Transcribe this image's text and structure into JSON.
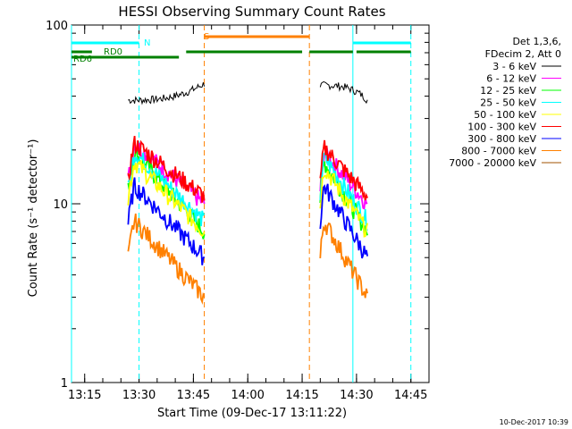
{
  "chart_data": {
    "type": "line",
    "title": "HESSI Observing Summary Count Rates",
    "xlabel": "Start Time (09-Dec-17 13:11:22)",
    "ylabel": "Count Rate (s⁻¹ detector⁻¹)",
    "yscale": "log",
    "ylim": [
      1,
      100
    ],
    "xlim": [
      "13:11:22",
      "14:50:00"
    ],
    "x_ticks": [
      "13:15",
      "13:30",
      "13:45",
      "14:00",
      "14:15",
      "14:30",
      "14:45"
    ],
    "y_ticks": [
      "1",
      "10",
      "100"
    ],
    "grid": false,
    "legend_header": [
      "Det 1,3,6,",
      "FDecim 2, Att 0"
    ],
    "legend_position": "right",
    "footer_date": "10-Dec-2017 10:39",
    "flag_labels": {
      "n": "N",
      "s": "S",
      "rd0": "RD0",
      "rd6": "RD6"
    },
    "flags": [
      {
        "label": "N",
        "color": "#00ffff",
        "segments": [
          [
            "13:11",
            "13:30"
          ],
          [
            "14:29",
            "14:45"
          ]
        ]
      },
      {
        "label": "S",
        "color": "#ff8000",
        "segments": [
          [
            "13:48",
            "14:17"
          ]
        ]
      },
      {
        "label": "RD0",
        "color": "#008000",
        "segments": [
          [
            "13:11",
            "13:17"
          ],
          [
            "13:43",
            "14:15"
          ],
          [
            "14:17",
            "14:29"
          ],
          [
            "14:30",
            "14:45"
          ]
        ]
      },
      {
        "label": "RD6",
        "color": "#008000",
        "segments": [
          [
            "13:11",
            "13:41"
          ]
        ]
      }
    ],
    "vlines": [
      {
        "t": "13:11:22",
        "color": "#00ffff",
        "style": "solid"
      },
      {
        "t": "13:30",
        "color": "#00ffff",
        "style": "dashed"
      },
      {
        "t": "13:48",
        "color": "#ff8000",
        "style": "dashed"
      },
      {
        "t": "14:17",
        "color": "#ff8000",
        "style": "dashed"
      },
      {
        "t": "14:29",
        "color": "#00ffff",
        "style": "solid"
      },
      {
        "t": "14:45",
        "color": "#00ffff",
        "style": "dashed"
      }
    ],
    "segments": [
      {
        "start": "13:27",
        "end": "13:48"
      },
      {
        "start": "14:20",
        "end": "14:33"
      }
    ],
    "series": [
      {
        "name": "3 - 6 keV",
        "color": "#000000",
        "values": [
          [
            38,
            47
          ],
          [
            46,
            38
          ]
        ]
      },
      {
        "name": "6 - 12 keV",
        "color": "#ff00ff",
        "values": [
          [
            19,
            10
          ],
          [
            17,
            10
          ]
        ]
      },
      {
        "name": "12 - 25 keV",
        "color": "#00ff00",
        "values": [
          [
            17,
            7
          ],
          [
            15,
            7
          ]
        ]
      },
      {
        "name": "25 - 50 keV",
        "color": "#00ffff",
        "values": [
          [
            17,
            8
          ],
          [
            16,
            8
          ]
        ]
      },
      {
        "name": "50 - 100 keV",
        "color": "#ffff00",
        "values": [
          [
            15,
            7
          ],
          [
            14,
            7
          ]
        ]
      },
      {
        "name": "100 - 300 keV",
        "color": "#ff0000",
        "values": [
          [
            19,
            11
          ],
          [
            18,
            11
          ]
        ]
      },
      {
        "name": "300 - 800 keV",
        "color": "#0000ff",
        "values": [
          [
            11,
            5
          ],
          [
            11,
            5
          ]
        ]
      },
      {
        "name": "800 - 7000 keV",
        "color": "#ff8000",
        "values": [
          [
            7,
            3
          ],
          [
            7,
            3
          ]
        ]
      },
      {
        "name": "7000 - 20000 keV",
        "color": "#a05000",
        "values": []
      }
    ]
  }
}
